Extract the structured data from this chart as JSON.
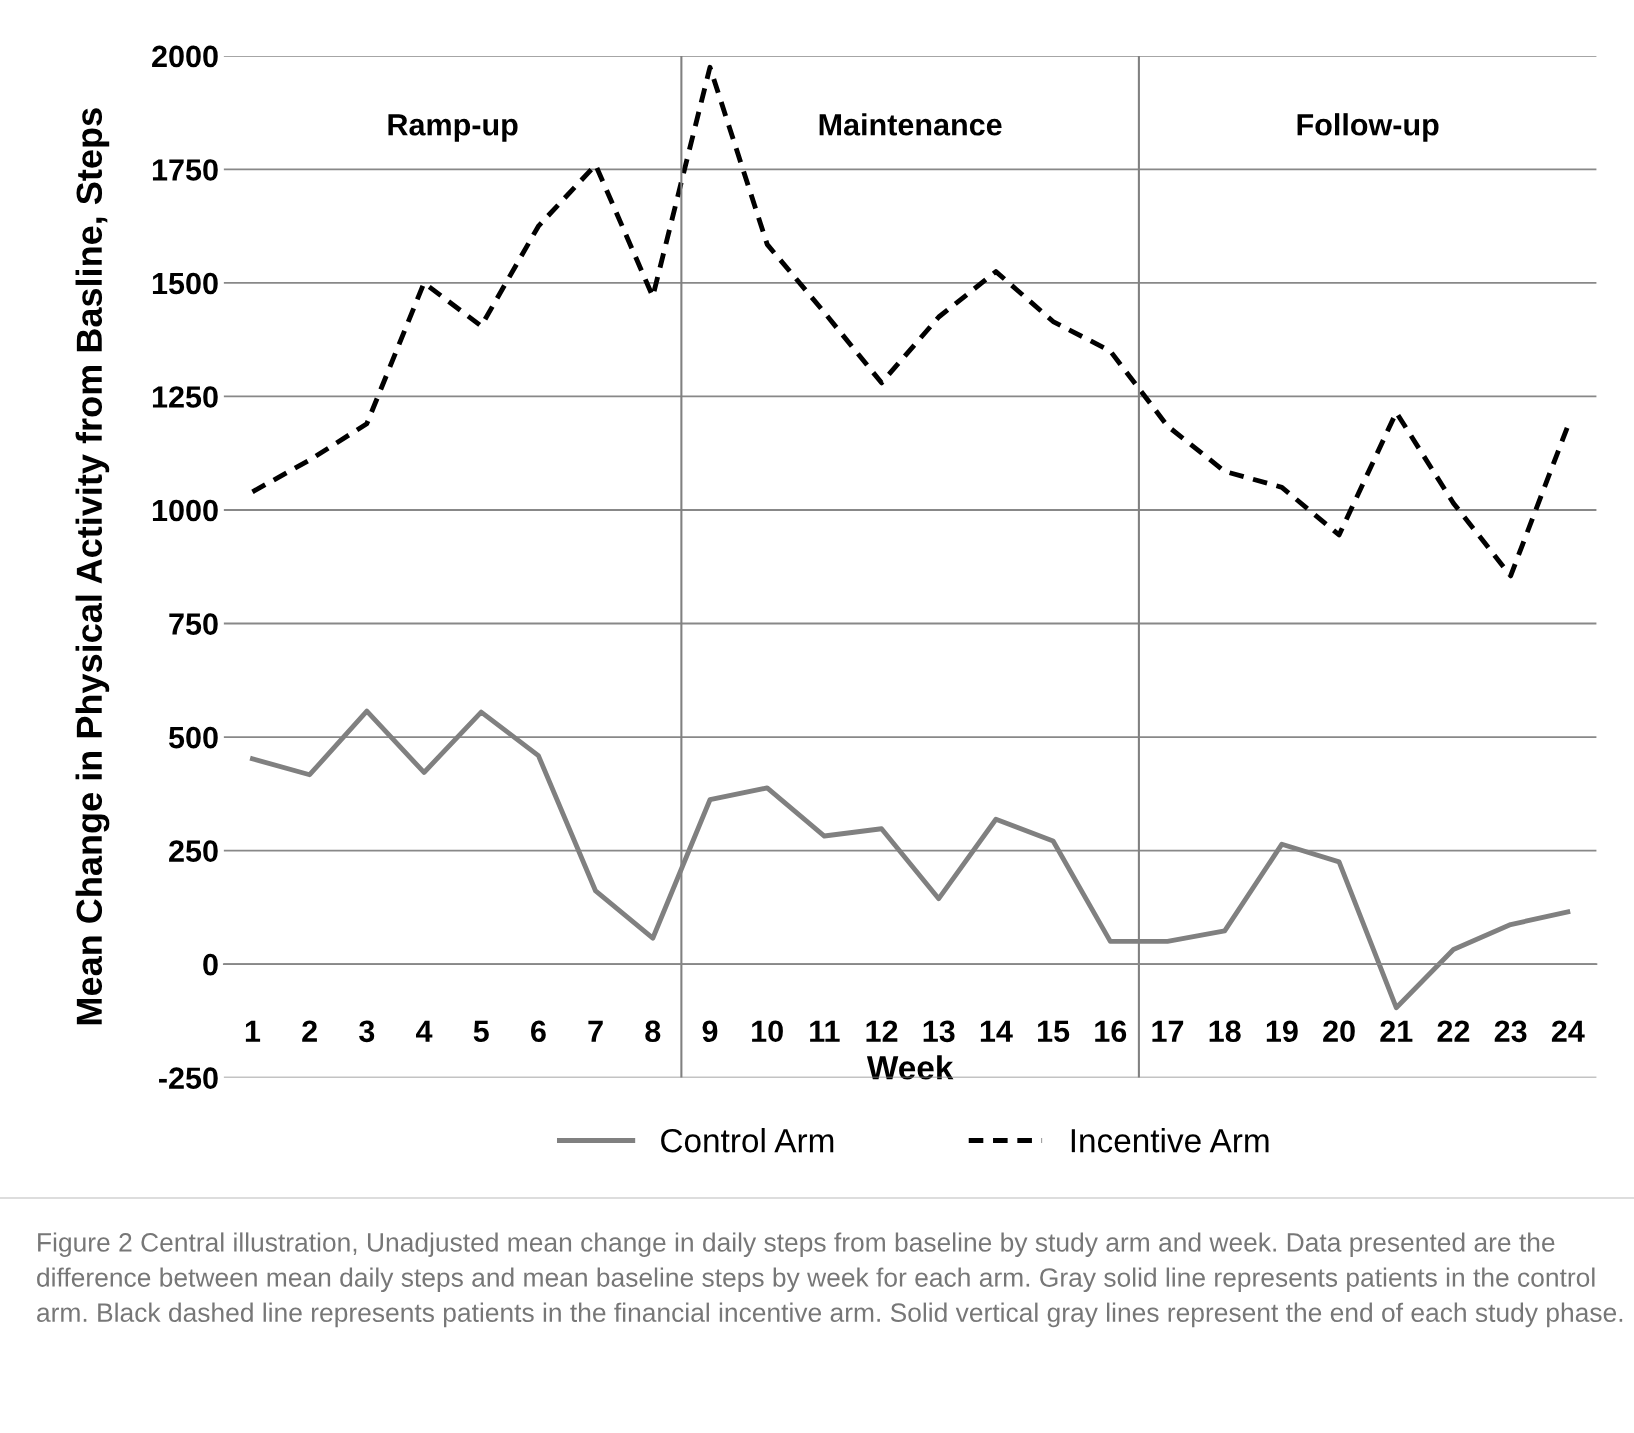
{
  "chart_data": {
    "type": "line",
    "xlabel": "Week",
    "ylabel": "Mean Change in Physical Activity from Basline, Steps",
    "x": [
      1,
      2,
      3,
      4,
      5,
      6,
      7,
      8,
      9,
      10,
      11,
      12,
      13,
      14,
      15,
      16,
      17,
      18,
      19,
      20,
      21,
      22,
      23,
      24
    ],
    "xlim": [
      0.5,
      24.5
    ],
    "xticks": [
      1,
      2,
      3,
      4,
      5,
      6,
      7,
      8,
      9,
      10,
      11,
      12,
      13,
      14,
      15,
      16,
      17,
      18,
      19,
      20,
      21,
      22,
      23,
      24
    ],
    "ylim": [
      -250,
      2000
    ],
    "yticks": [
      -250,
      0,
      250,
      500,
      750,
      1000,
      1250,
      1500,
      1750,
      2000
    ],
    "series": [
      {
        "name": "Control Arm",
        "color": "#808080",
        "line_style": "solid",
        "values": [
          452,
          417,
          557,
          422,
          555,
          459,
          161,
          57,
          362,
          388,
          282,
          298,
          144,
          319,
          271,
          50,
          50,
          73,
          264,
          225,
          -96,
          32,
          87,
          115
        ]
      },
      {
        "name": "Incentive Arm",
        "color": "#000000",
        "line_style": "dashed",
        "values": [
          1040,
          1110,
          1190,
          1500,
          1405,
          1625,
          1760,
          1470,
          1975,
          1585,
          1435,
          1280,
          1425,
          1525,
          1415,
          1350,
          1185,
          1085,
          1050,
          945,
          1215,
          1015,
          855,
          1185
        ]
      }
    ],
    "ref_lines": [
      {
        "axis": "x",
        "value": 8.5,
        "color": "#808080"
      },
      {
        "axis": "x",
        "value": 16.5,
        "color": "#808080"
      }
    ],
    "grid": "y",
    "legend": "bottom",
    "marker": "none",
    "annotations": [
      "Ramp-up",
      "Maintenance",
      "Follow-up",
      "Figure 2 Central illustration, Unadjusted mean change in daily steps from baseline by study arm and week. Data presented are the difference between mean daily steps and mean baseline steps by week for each arm. Gray solid line represents patients in the control arm. Black dashed line represents patients in the financial incentive arm. Solid vertical gray lines represent the end of each study phase."
    ]
  }
}
